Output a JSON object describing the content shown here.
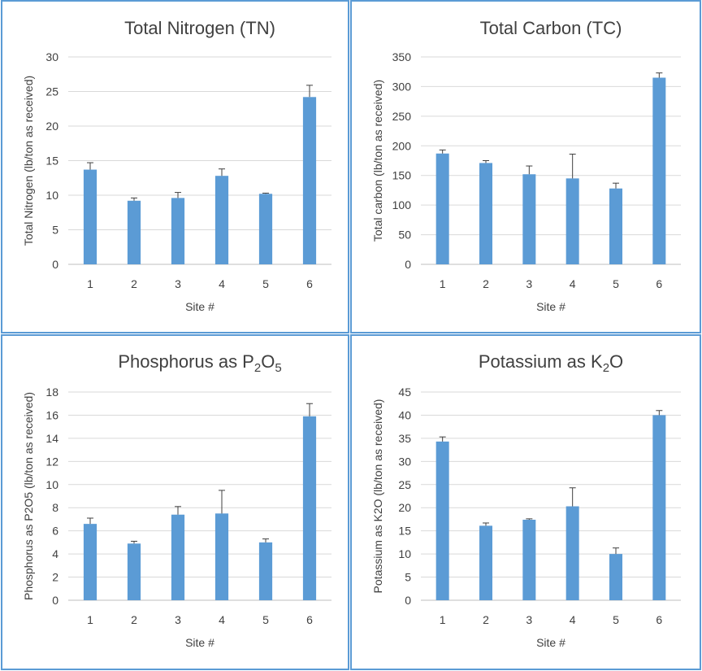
{
  "chart_data": [
    {
      "type": "bar",
      "title": "Total Nitrogen (TN)",
      "title_sub": "",
      "title_sub2": "",
      "xlabel": "Site #",
      "ylabel": "Total Nitrogen (lb/ton as received)",
      "categories": [
        "1",
        "2",
        "3",
        "4",
        "5",
        "6"
      ],
      "values": [
        13.7,
        9.2,
        9.6,
        12.8,
        10.2,
        24.2
      ],
      "errors": [
        1.0,
        0.4,
        0.8,
        1.0,
        0.1,
        1.7
      ],
      "ylim": [
        0,
        30
      ],
      "yticks": [
        0,
        5,
        10,
        15,
        20,
        25,
        30
      ],
      "grid": true,
      "bar_color": "#5b9bd5"
    },
    {
      "type": "bar",
      "title": "Total Carbon (TC)",
      "title_sub": "",
      "title_sub2": "",
      "xlabel": "Site #",
      "ylabel": "Total carbon (lb/ton as received)",
      "categories": [
        "1",
        "2",
        "3",
        "4",
        "5",
        "6"
      ],
      "values": [
        187,
        171,
        152,
        145,
        128,
        315
      ],
      "errors": [
        6,
        4,
        14,
        41,
        9,
        8
      ],
      "ylim": [
        0,
        350
      ],
      "yticks": [
        0,
        50,
        100,
        150,
        200,
        250,
        300,
        350
      ],
      "grid": true,
      "bar_color": "#5b9bd5"
    },
    {
      "type": "bar",
      "title": "Phosphorus as P",
      "title_sub": "2",
      "title_mid": "O",
      "title_sub2": "5",
      "xlabel": "Site #",
      "ylabel": "Phosphorus as P2O5 (lb/ton as received)",
      "categories": [
        "1",
        "2",
        "3",
        "4",
        "5",
        "6"
      ],
      "values": [
        6.6,
        4.9,
        7.4,
        7.5,
        5.0,
        15.9
      ],
      "errors": [
        0.5,
        0.2,
        0.7,
        2.0,
        0.3,
        1.1
      ],
      "ylim": [
        0,
        18
      ],
      "yticks": [
        0,
        2,
        4,
        6,
        8,
        10,
        12,
        14,
        16,
        18
      ],
      "grid": true,
      "bar_color": "#5b9bd5"
    },
    {
      "type": "bar",
      "title": "Potassium as K",
      "title_sub": "2",
      "title_mid": "O",
      "title_sub2": "",
      "xlabel": "Site #",
      "ylabel": "Potassium as K2O (lb/ton as received)",
      "categories": [
        "1",
        "2",
        "3",
        "4",
        "5",
        "6"
      ],
      "values": [
        34.3,
        16.1,
        17.4,
        20.3,
        10.0,
        40.0
      ],
      "errors": [
        1.0,
        0.6,
        0.2,
        4.0,
        1.3,
        1.0
      ],
      "ylim": [
        0,
        45
      ],
      "yticks": [
        0,
        5,
        10,
        15,
        20,
        25,
        30,
        35,
        40,
        45
      ],
      "grid": true,
      "bar_color": "#5b9bd5"
    }
  ]
}
